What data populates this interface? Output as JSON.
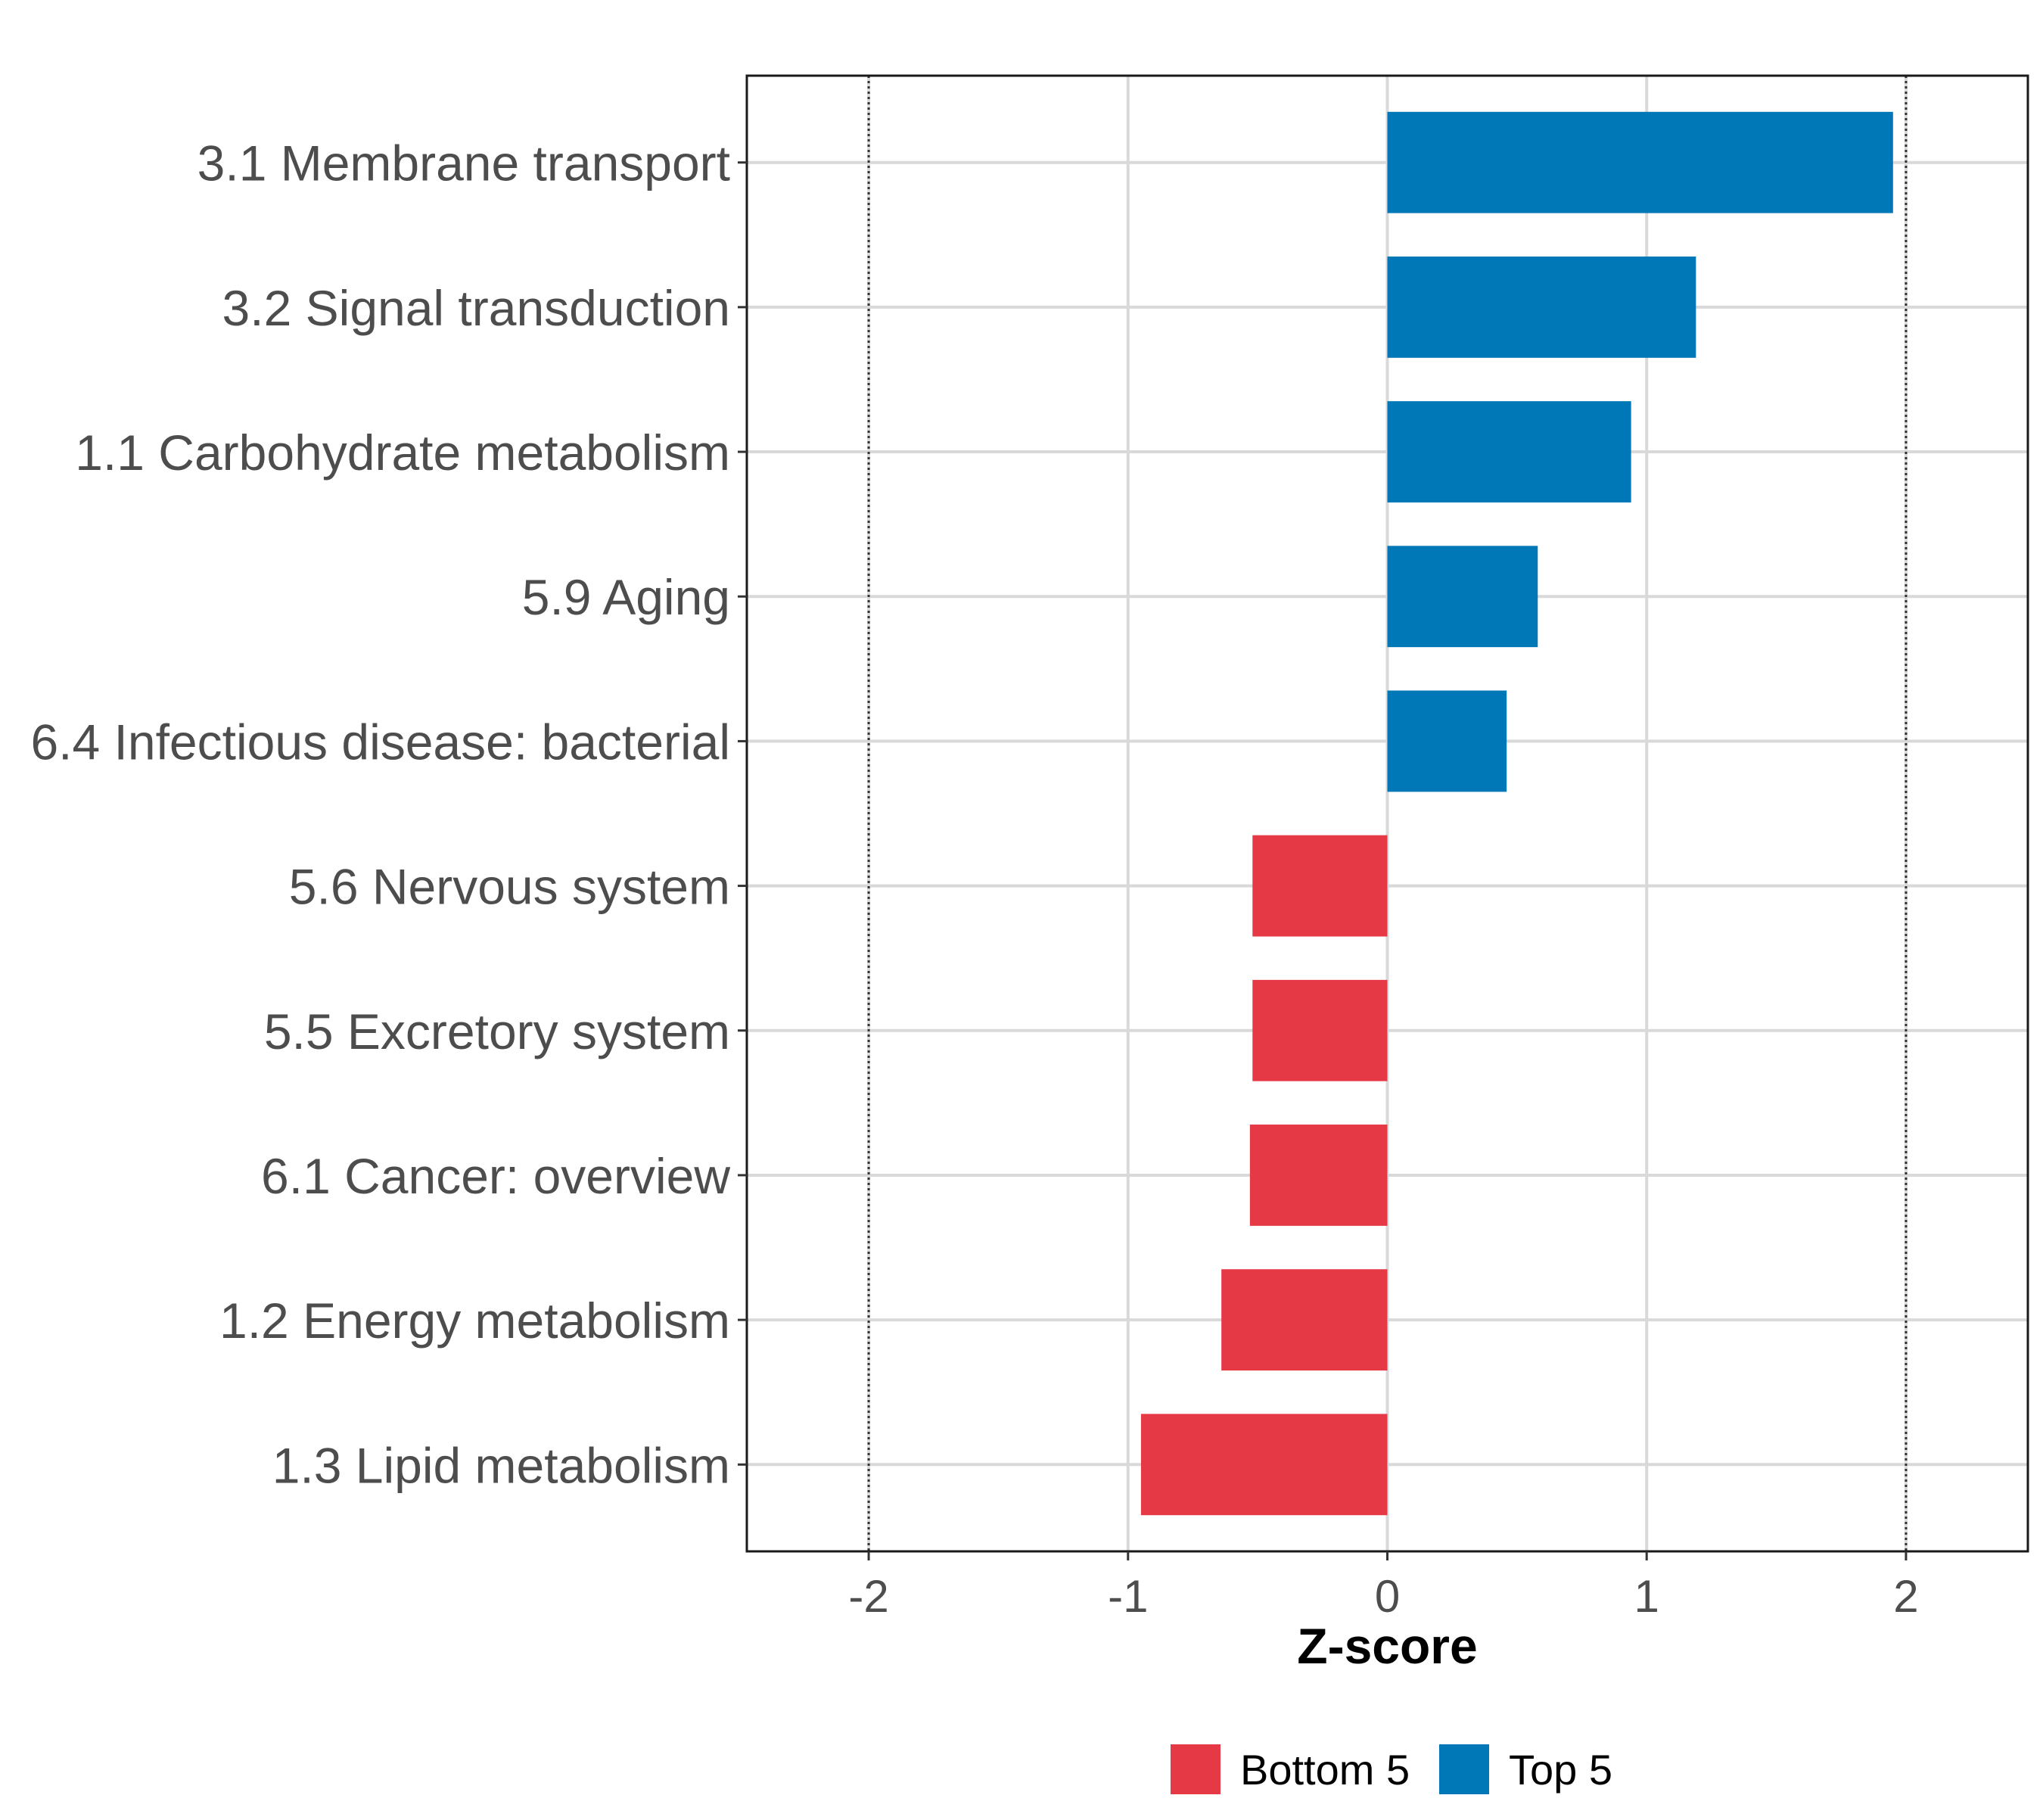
{
  "chart_data": {
    "type": "bar",
    "orientation": "horizontal",
    "title": "",
    "xlabel": "Z-score",
    "ylabel": "",
    "xlim": [
      -2.47,
      2.47
    ],
    "xticks": [
      "-2",
      "-1",
      "0",
      "1",
      "2"
    ],
    "xtick_values": [
      -2,
      -1,
      0,
      1,
      2
    ],
    "reference_lines": [
      -2,
      2
    ],
    "grid": true,
    "categories": [
      "3.1 Membrane transport",
      "3.2 Signal transduction",
      "1.1 Carbohydrate metabolism",
      "5.9 Aging",
      "6.4 Infectious disease: bacterial",
      "5.6 Nervous system",
      "5.5 Excretory system",
      "6.1 Cancer: overview",
      "1.2 Energy metabolism",
      "1.3 Lipid metabolism"
    ],
    "values": [
      1.95,
      1.19,
      0.94,
      0.58,
      0.46,
      -0.52,
      -0.52,
      -0.53,
      -0.64,
      -0.95
    ],
    "groups": [
      "Top 5",
      "Top 5",
      "Top 5",
      "Top 5",
      "Top 5",
      "Bottom 5",
      "Bottom 5",
      "Bottom 5",
      "Bottom 5",
      "Bottom 5"
    ],
    "legend": {
      "placement": "bottom",
      "entries": [
        {
          "name": "Bottom 5",
          "color": "#E63946"
        },
        {
          "name": "Top 5",
          "color": "#0077B6"
        }
      ]
    }
  }
}
